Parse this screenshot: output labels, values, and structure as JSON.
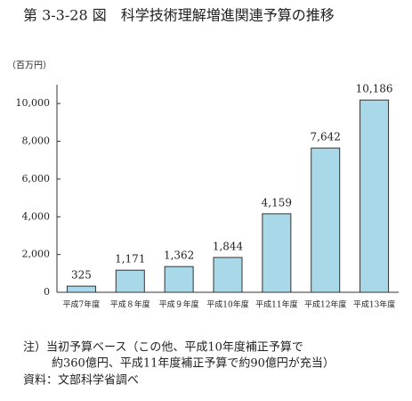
{
  "chart_data": {
    "type": "bar",
    "title": "第 3-3-28 図　科学技術理解増進関連予算の推移",
    "y_label": "（百万円）",
    "categories": [
      "平成7年度",
      "平成８年度",
      "平成９年度",
      "平成10年度",
      "平成11年度",
      "平成12年度",
      "平成13年度"
    ],
    "values": [
      325,
      1171,
      1362,
      1844,
      4159,
      7642,
      10186
    ],
    "value_labels": [
      "325",
      "1,171",
      "1,362",
      "1,844",
      "4,159",
      "7,642",
      "10,186"
    ],
    "color": "#a9d9e8",
    "ylim": [
      0,
      11000
    ],
    "yticks": [
      0,
      {
        "value": 2000,
        "label": "2,000"
      },
      {
        "value": 4000,
        "label": "4,000"
      },
      {
        "value": 6000,
        "label": "6,000"
      },
      {
        "value": 8000,
        "label": "8,000"
      },
      {
        "value": 10000,
        "label": "10,000"
      }
    ],
    "grid": false,
    "notes": [
      "注）当初予算ベース（この他、平成10年度補正予算で",
      "約360億円、平成11年度補正予算で約90億円が充当）",
      "資料：文部科学省調べ"
    ]
  }
}
